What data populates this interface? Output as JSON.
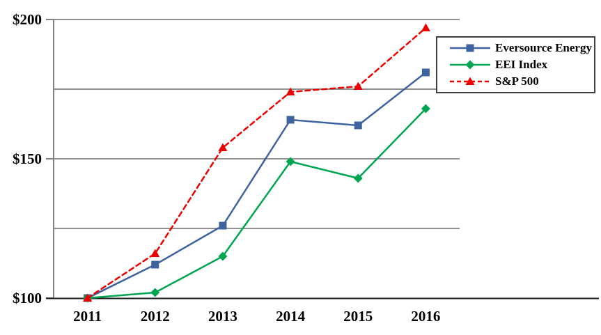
{
  "chart_data": {
    "type": "line",
    "categories": [
      "2011",
      "2012",
      "2013",
      "2014",
      "2015",
      "2016"
    ],
    "series": [
      {
        "name": "Eversource Energy",
        "values": [
          100,
          112,
          126,
          164,
          162,
          181
        ],
        "color": "#3E639E",
        "marker": "square",
        "line": "solid"
      },
      {
        "name": "EEI Index",
        "values": [
          100,
          102,
          115,
          149,
          143,
          168
        ],
        "color": "#00A550",
        "marker": "diamond",
        "line": "solid"
      },
      {
        "name": "S&P 500",
        "values": [
          100,
          116,
          154,
          174,
          176,
          197
        ],
        "color": "#EC0000",
        "marker": "triangle",
        "line": "dashed"
      }
    ],
    "yticks": [
      {
        "value": 100,
        "label": "$100"
      },
      {
        "value": 150,
        "label": "$150"
      },
      {
        "value": 200,
        "label": "$200"
      }
    ],
    "gridline_values": [
      125,
      150,
      175,
      200
    ],
    "ylim": [
      100,
      200
    ],
    "title": "",
    "xlabel": "",
    "ylabel": "",
    "grid": "horizontal",
    "legend_position": "top-right",
    "colors": {
      "gridline": "#7F7F7F",
      "axis_line": "#808080",
      "baseline": "#1A1A1A",
      "text": "#000000",
      "legend_border": "#404040"
    }
  }
}
